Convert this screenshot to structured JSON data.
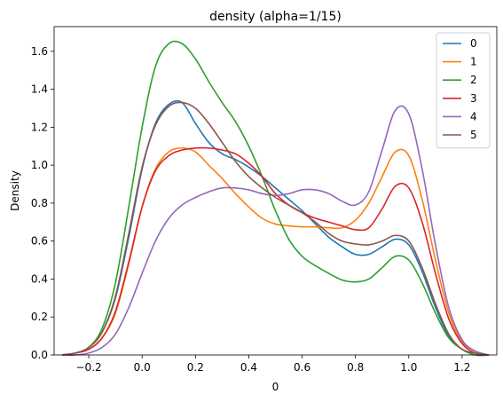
{
  "chart_data": {
    "type": "line",
    "title": "density (alpha=1/15)",
    "xlabel": "0",
    "ylabel": "Density",
    "xlim": [
      -0.33,
      1.33
    ],
    "ylim": [
      0,
      1.73
    ],
    "xticks": [
      -0.2,
      0.0,
      0.2,
      0.4,
      0.6,
      0.8,
      1.0,
      1.2
    ],
    "xtick_labels": [
      "−0.2",
      "0.0",
      "0.2",
      "0.4",
      "0.6",
      "0.8",
      "1.0",
      "1.2"
    ],
    "yticks": [
      0.0,
      0.2,
      0.4,
      0.6,
      0.8,
      1.0,
      1.2,
      1.4,
      1.6
    ],
    "ytick_labels": [
      "0.0",
      "0.2",
      "0.4",
      "0.6",
      "0.8",
      "1.0",
      "1.2",
      "1.4",
      "1.6"
    ],
    "grid": false,
    "legend_position": "top-right",
    "x": [
      -0.3,
      -0.25,
      -0.2,
      -0.15,
      -0.1,
      -0.05,
      0.0,
      0.05,
      0.1,
      0.15,
      0.2,
      0.25,
      0.3,
      0.35,
      0.4,
      0.45,
      0.5,
      0.55,
      0.6,
      0.65,
      0.7,
      0.75,
      0.8,
      0.85,
      0.9,
      0.95,
      1.0,
      1.05,
      1.1,
      1.15,
      1.2,
      1.25,
      1.3
    ],
    "series": [
      {
        "name": "0",
        "color": "#1f77b4",
        "values": [
          0.0,
          0.01,
          0.04,
          0.12,
          0.3,
          0.62,
          0.98,
          1.22,
          1.32,
          1.33,
          1.22,
          1.12,
          1.06,
          1.03,
          0.99,
          0.94,
          0.88,
          0.82,
          0.76,
          0.69,
          0.62,
          0.57,
          0.53,
          0.53,
          0.57,
          0.61,
          0.58,
          0.44,
          0.25,
          0.1,
          0.03,
          0.0,
          0.0
        ]
      },
      {
        "name": "1",
        "color": "#ff7f0e",
        "values": [
          0.0,
          0.01,
          0.03,
          0.09,
          0.22,
          0.48,
          0.78,
          0.98,
          1.07,
          1.09,
          1.07,
          1.0,
          0.93,
          0.85,
          0.78,
          0.72,
          0.69,
          0.68,
          0.675,
          0.675,
          0.67,
          0.67,
          0.71,
          0.8,
          0.94,
          1.07,
          1.05,
          0.82,
          0.5,
          0.22,
          0.07,
          0.02,
          0.0
        ]
      },
      {
        "name": "2",
        "color": "#2ca02c",
        "values": [
          0.0,
          0.01,
          0.04,
          0.14,
          0.38,
          0.78,
          1.2,
          1.52,
          1.64,
          1.64,
          1.56,
          1.44,
          1.33,
          1.23,
          1.1,
          0.94,
          0.76,
          0.61,
          0.52,
          0.47,
          0.43,
          0.395,
          0.385,
          0.4,
          0.46,
          0.52,
          0.5,
          0.38,
          0.22,
          0.09,
          0.03,
          0.0,
          0.0
        ]
      },
      {
        "name": "3",
        "color": "#d62728",
        "values": [
          0.0,
          0.01,
          0.03,
          0.09,
          0.23,
          0.49,
          0.78,
          0.97,
          1.05,
          1.08,
          1.09,
          1.09,
          1.08,
          1.06,
          1.01,
          0.94,
          0.85,
          0.79,
          0.75,
          0.72,
          0.7,
          0.68,
          0.66,
          0.67,
          0.77,
          0.89,
          0.88,
          0.7,
          0.43,
          0.19,
          0.06,
          0.01,
          0.0
        ]
      },
      {
        "name": "4",
        "color": "#9467bd",
        "values": [
          0.0,
          0.0,
          0.01,
          0.04,
          0.11,
          0.25,
          0.43,
          0.6,
          0.72,
          0.79,
          0.83,
          0.86,
          0.88,
          0.88,
          0.87,
          0.85,
          0.84,
          0.85,
          0.87,
          0.87,
          0.85,
          0.81,
          0.79,
          0.86,
          1.08,
          1.29,
          1.27,
          0.98,
          0.58,
          0.25,
          0.08,
          0.02,
          0.0
        ]
      },
      {
        "name": "5",
        "color": "#8c564b",
        "values": [
          0.0,
          0.01,
          0.04,
          0.12,
          0.31,
          0.64,
          0.99,
          1.21,
          1.31,
          1.33,
          1.3,
          1.22,
          1.12,
          1.02,
          0.94,
          0.88,
          0.83,
          0.79,
          0.75,
          0.7,
          0.64,
          0.6,
          0.585,
          0.58,
          0.6,
          0.63,
          0.6,
          0.46,
          0.27,
          0.11,
          0.03,
          0.01,
          0.0
        ]
      }
    ]
  }
}
